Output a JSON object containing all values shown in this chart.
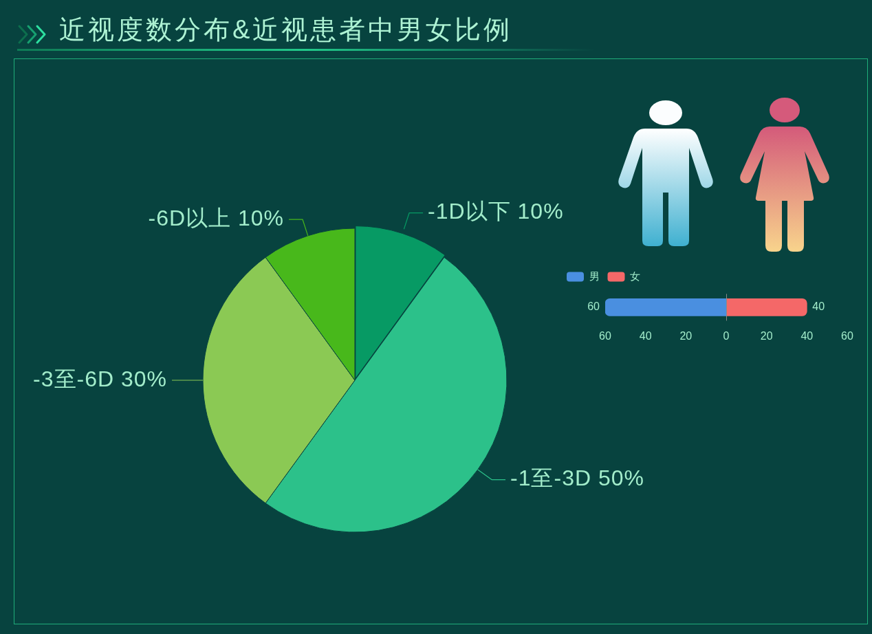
{
  "chart_data": [
    {
      "type": "pie",
      "title": "近视度数分布&近视患者中男女比例",
      "categories": [
        "-1D以下",
        "-1至-3D",
        "-3至-6D",
        "-6D以上"
      ],
      "values": [
        10,
        50,
        30,
        10
      ],
      "colors": [
        "#079a64",
        "#2cc18a",
        "#8bc954",
        "#48b81b"
      ],
      "value_labels": [
        "10%",
        "50%",
        "30%",
        "10%"
      ]
    },
    {
      "type": "bar",
      "orientation": "horizontal",
      "categories": [
        null
      ],
      "series": [
        {
          "name": "男",
          "color": "#4a8fe0",
          "values": [
            60
          ],
          "base": [
            -60
          ]
        },
        {
          "name": "女",
          "color": "#f46868",
          "values": [
            40
          ],
          "base": [
            0
          ]
        }
      ],
      "xlim": [
        -60,
        60
      ],
      "xticks": [
        {
          "value": -60,
          "label": "60"
        },
        {
          "value": -40,
          "label": "40"
        },
        {
          "value": -20,
          "label": "20"
        },
        0,
        20,
        40,
        60
      ],
      "ref_lines": [
        {
          "axis": "x",
          "value": 0,
          "color": "#8a8a8a"
        }
      ],
      "data_labels": true,
      "legend": "top left",
      "tick_labels": "x"
    }
  ]
}
